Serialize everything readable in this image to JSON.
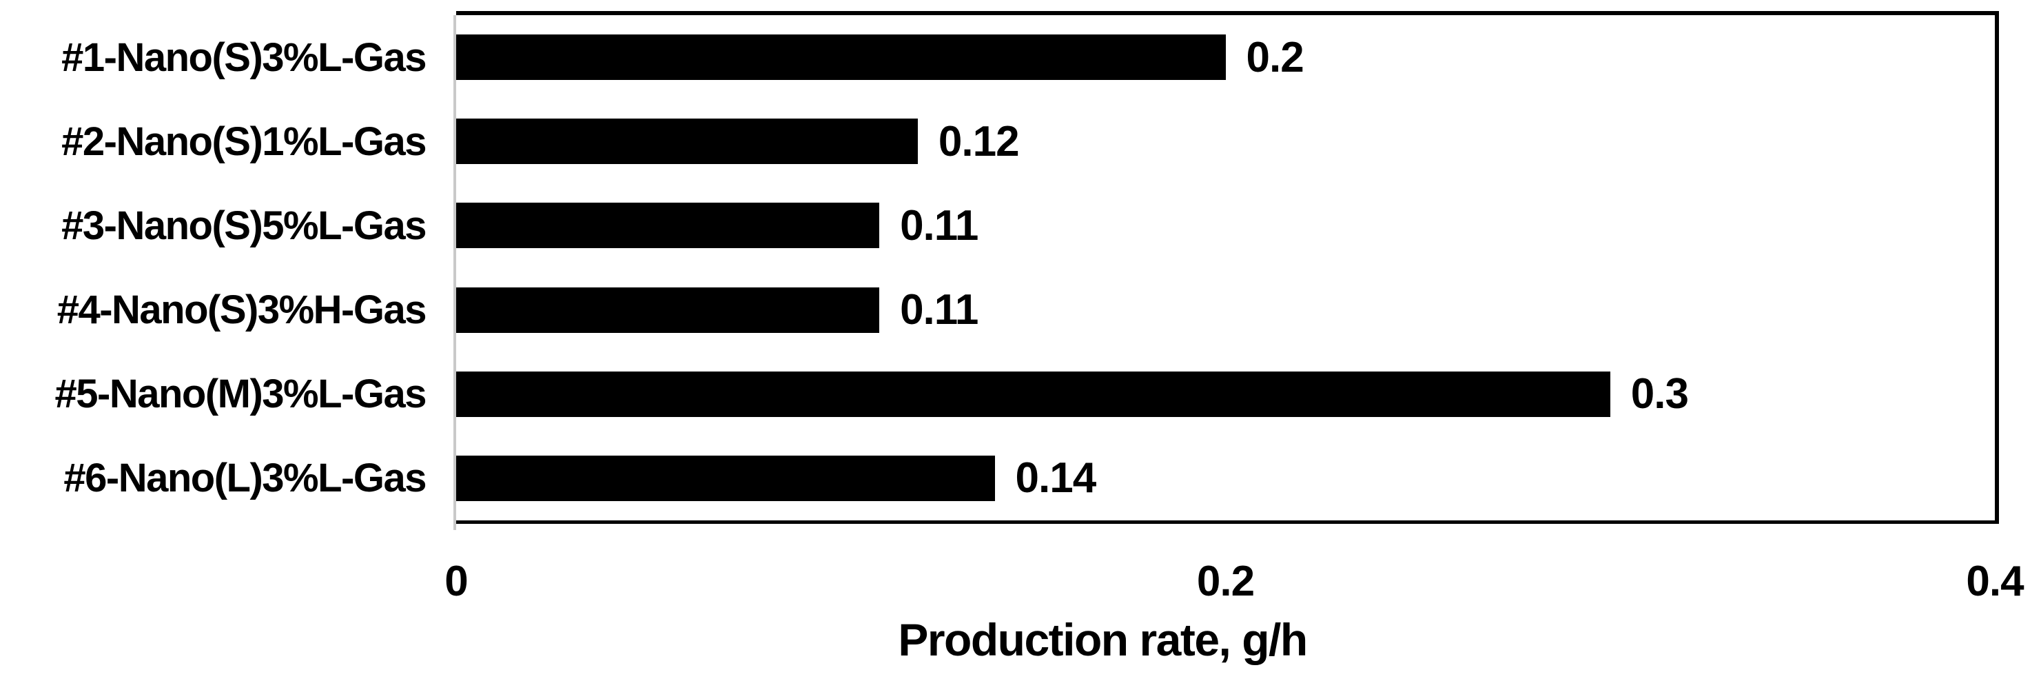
{
  "chart_data": {
    "type": "bar",
    "orientation": "horizontal",
    "title": "",
    "xlabel": "Production rate, g/h",
    "ylabel": "",
    "categories": [
      "#1-Nano(S)3%L-Gas",
      "#2-Nano(S)1%L-Gas",
      "#3-Nano(S)5%L-Gas",
      "#4-Nano(S)3%H-Gas",
      "#5-Nano(M)3%L-Gas",
      "#6-Nano(L)3%L-Gas"
    ],
    "values": [
      0.2,
      0.12,
      0.11,
      0.11,
      0.3,
      0.14
    ],
    "value_labels": [
      "0.2",
      "0.12",
      "0.11",
      "0.11",
      "0.3",
      "0.14"
    ],
    "xlim": [
      0,
      0.4
    ],
    "xticks": [
      {
        "label": "0",
        "value": 0
      },
      {
        "label": "0.2",
        "value": 0.2
      },
      {
        "label": "0.4",
        "value": 0.4
      }
    ],
    "grid": false,
    "legend": false,
    "data_labels": true,
    "bar_color": "#000000",
    "axis_line_color": "#c9c9c9",
    "plot_border_color": "#000000",
    "background_color": "#ffffff"
  }
}
